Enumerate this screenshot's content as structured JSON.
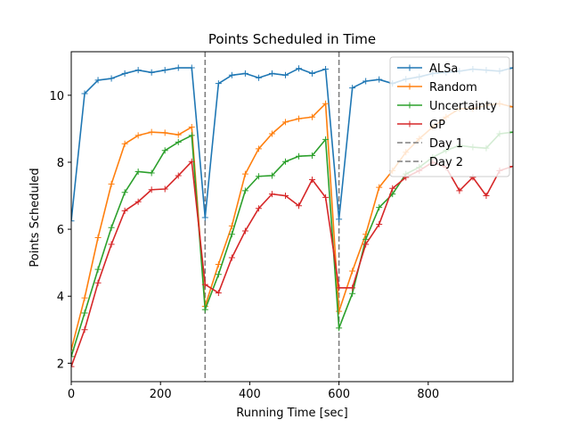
{
  "chart_data": {
    "type": "line",
    "title": "Points Scheduled in Time",
    "xlabel": "Running Time [sec]",
    "ylabel": "Points Scheduled",
    "xlim": [
      0,
      990
    ],
    "ylim": [
      1.45,
      11.3
    ],
    "xticks": [
      0,
      200,
      400,
      600,
      800
    ],
    "yticks": [
      2,
      4,
      6,
      8,
      10
    ],
    "x": [
      0,
      30,
      60,
      90,
      120,
      150,
      180,
      210,
      240,
      270,
      300,
      330,
      360,
      390,
      420,
      450,
      480,
      510,
      540,
      570,
      600,
      630,
      660,
      690,
      720,
      750,
      780,
      810,
      840,
      870,
      900,
      930,
      960,
      990
    ],
    "series": [
      {
        "name": "ALSa",
        "color": "#1f77b4",
        "values": [
          6.25,
          10.05,
          10.45,
          10.5,
          10.65,
          10.75,
          10.68,
          10.75,
          10.82,
          10.82,
          6.35,
          10.35,
          10.6,
          10.65,
          10.52,
          10.65,
          10.6,
          10.8,
          10.65,
          10.78,
          6.3,
          10.22,
          10.42,
          10.47,
          10.35,
          10.48,
          10.55,
          10.65,
          10.68,
          10.72,
          10.78,
          10.75,
          10.72,
          10.82
        ]
      },
      {
        "name": "Random",
        "color": "#ff7f0e",
        "values": [
          2.4,
          3.95,
          5.75,
          7.35,
          8.55,
          8.8,
          8.9,
          8.88,
          8.82,
          9.05,
          3.7,
          4.95,
          6.1,
          7.65,
          8.4,
          8.85,
          9.2,
          9.3,
          9.35,
          9.75,
          3.55,
          4.75,
          5.85,
          7.25,
          7.75,
          8.3,
          8.7,
          9.05,
          9.35,
          9.6,
          9.6,
          9.7,
          9.75,
          9.65
        ]
      },
      {
        "name": "Uncertainty",
        "color": "#2ca02c",
        "values": [
          2.2,
          3.5,
          4.8,
          6.05,
          7.1,
          7.72,
          7.68,
          8.35,
          8.6,
          8.8,
          3.6,
          4.65,
          5.85,
          7.15,
          7.58,
          7.6,
          8.02,
          8.18,
          8.2,
          8.68,
          3.05,
          4.08,
          5.7,
          6.65,
          7.05,
          7.65,
          7.85,
          8.15,
          8.35,
          8.5,
          8.45,
          8.42,
          8.85,
          8.9
        ]
      },
      {
        "name": "GP",
        "color": "#d62728",
        "values": [
          1.9,
          3.0,
          4.4,
          5.55,
          6.55,
          6.82,
          7.18,
          7.2,
          7.6,
          8.02,
          4.35,
          4.1,
          5.15,
          5.95,
          6.62,
          7.05,
          7.0,
          6.7,
          7.48,
          6.95,
          4.25,
          4.25,
          5.55,
          6.15,
          7.22,
          7.55,
          7.75,
          8.0,
          7.85,
          7.15,
          7.55,
          7.0,
          7.75,
          7.88
        ]
      }
    ],
    "vlines": [
      {
        "name": "Day 1",
        "x": 300,
        "color": "#7f7f7f"
      },
      {
        "name": "Day 2",
        "x": 600,
        "color": "#7f7f7f"
      }
    ],
    "legend": {
      "position": "top-right"
    }
  }
}
